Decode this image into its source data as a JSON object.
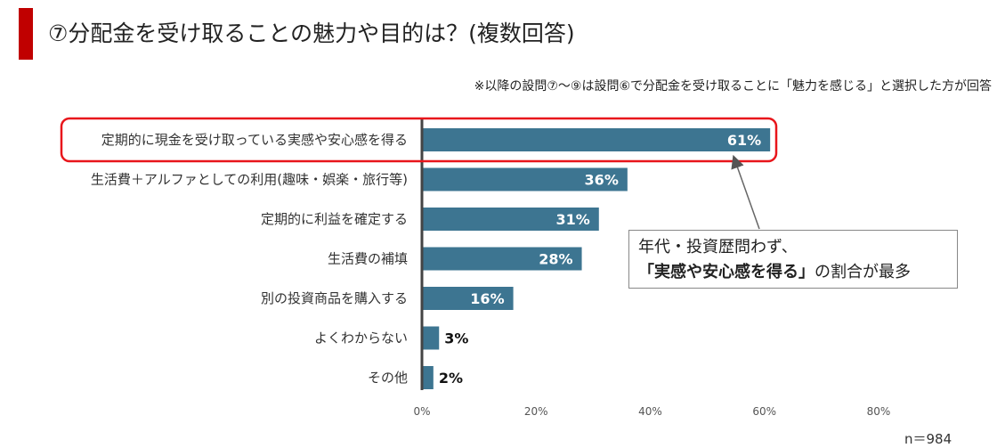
{
  "header": {
    "title": "⑦分配金を受け取ることの魅力や目的は？(複数回答)",
    "note": "※以降の設問⑦～⑨は設問⑥で分配金を受け取ることに「魅力を感じる」と選択した方が回答"
  },
  "chart_data": {
    "type": "bar",
    "orientation": "horizontal",
    "categories": [
      "定期的に現金を受け取っている実感や安心感を得る",
      "生活費＋アルファとしての利用(趣味・娯楽・旅行等)",
      "定期的に利益を確定する",
      "生活費の補填",
      "別の投資商品を購入する",
      "よくわからない",
      "その他"
    ],
    "values": [
      61,
      36,
      31,
      28,
      16,
      3,
      2
    ],
    "value_labels": [
      "61%",
      "36%",
      "31%",
      "28%",
      "16%",
      "3%",
      "2%"
    ],
    "xlim": [
      0,
      80
    ],
    "xticks": [
      "0%",
      "20%",
      "40%",
      "60%",
      "80%"
    ],
    "grid": false,
    "bar_color": "#3d7591",
    "highlight_color": "#e8151b",
    "highlight_index": 0
  },
  "callout": {
    "line1": "年代・投資歴問わず、",
    "line2_bold": "「実感や安心感を得る」",
    "line2_rest": "の割合が最多"
  },
  "sample_size": "n＝984"
}
